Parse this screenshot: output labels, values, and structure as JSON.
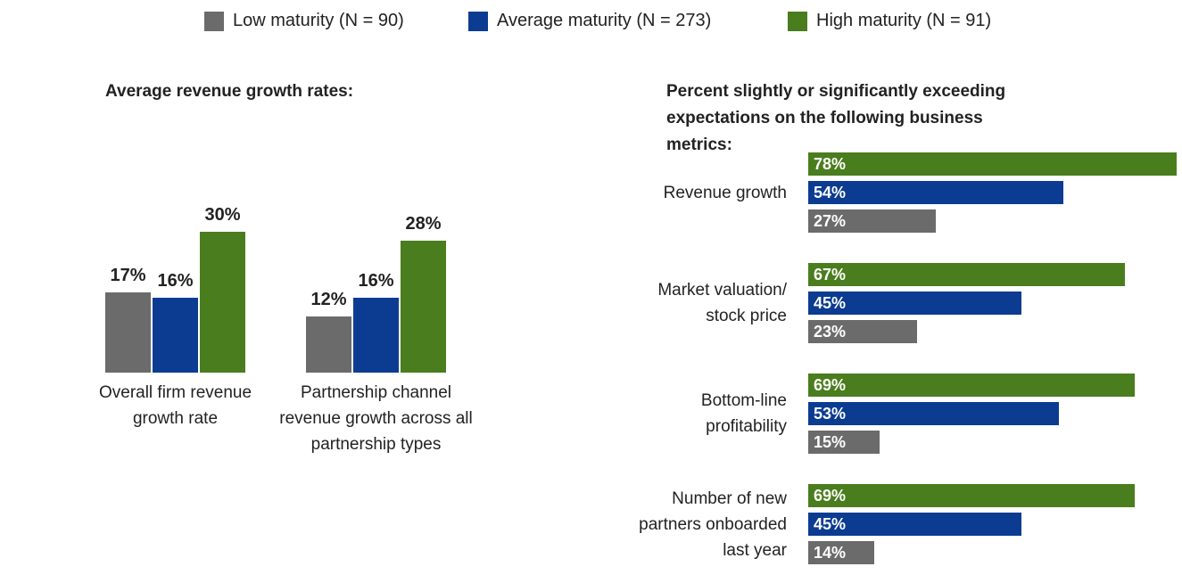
{
  "chart_data": [
    {
      "type": "bar",
      "title": "Average revenue growth rates:",
      "categories": [
        "Overall firm revenue growth rate",
        "Partnership channel revenue growth across all partnership types"
      ],
      "series": [
        {
          "name": "Low maturity (N = 90)",
          "color": "#6b6b6b",
          "values": [
            17,
            12
          ],
          "value_labels": [
            "17%",
            "12%"
          ]
        },
        {
          "name": "Average maturity (N = 273)",
          "color": "#0b3c91",
          "values": [
            16,
            16
          ],
          "value_labels": [
            "16%",
            "16%"
          ]
        },
        {
          "name": "High maturity (N = 91)",
          "color": "#4a7d1e",
          "values": [
            30,
            28
          ],
          "value_labels": [
            "30%",
            "28%"
          ]
        }
      ]
    },
    {
      "type": "hbar",
      "title": "Percent slightly or significantly exceeding expectations on the following business metrics:",
      "categories": [
        "Revenue growth",
        "Market valuation/ stock price",
        "Bottom-line profitability",
        "Number of new partners onboarded last year"
      ],
      "series": [
        {
          "color": "#4a7d1e",
          "values": [
            78,
            67,
            69,
            69
          ],
          "value_labels": [
            "78%",
            "67%",
            "69%",
            "69%"
          ]
        },
        {
          "color": "#0b3c91",
          "values": [
            54,
            45,
            53,
            45
          ],
          "value_labels": [
            "54%",
            "45%",
            "53%",
            "45%"
          ]
        },
        {
          "color": "#6b6b6b",
          "values": [
            27,
            23,
            15,
            14
          ],
          "value_labels": [
            "27%",
            "23%",
            "15%",
            "14%"
          ]
        }
      ]
    }
  ]
}
